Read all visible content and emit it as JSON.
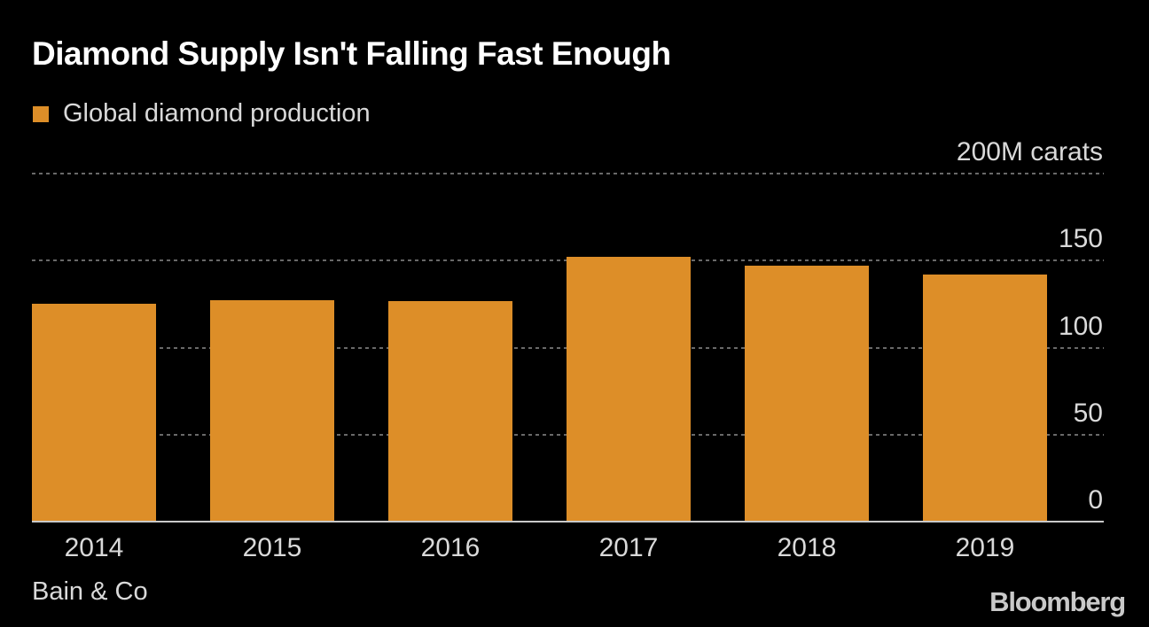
{
  "title": "Diamond Supply Isn't Falling Fast Enough",
  "legend": {
    "label": "Global diamond production",
    "swatch_color": "#dd8e28"
  },
  "source": "Bain & Co",
  "brand": "Bloomberg",
  "colors": {
    "background": "#000000",
    "bar": "#dd8e28",
    "title_text": "#ffffff",
    "secondary_text": "#d9d9d9",
    "gridline": "#696969",
    "baseline": "#c9c9c9",
    "logo_text": "#c9c9c9"
  },
  "chart_data": {
    "type": "bar",
    "title": "Diamond Supply Isn't Falling Fast Enough",
    "series_name": "Global diamond production",
    "categories": [
      "2014",
      "2015",
      "2016",
      "2017",
      "2018",
      "2019"
    ],
    "values": [
      125,
      127,
      126.5,
      152,
      147,
      142
    ],
    "unit": "M carats",
    "ylim": [
      0,
      200
    ],
    "yticks": [
      0,
      50,
      100,
      150,
      200
    ],
    "ytick_labels": [
      "0",
      "50",
      "100",
      "150",
      "200M carats"
    ],
    "axis_side": "right",
    "grid": "dotted-horizontal",
    "legend_position": "top-left",
    "bar_color": "#dd8e28"
  }
}
